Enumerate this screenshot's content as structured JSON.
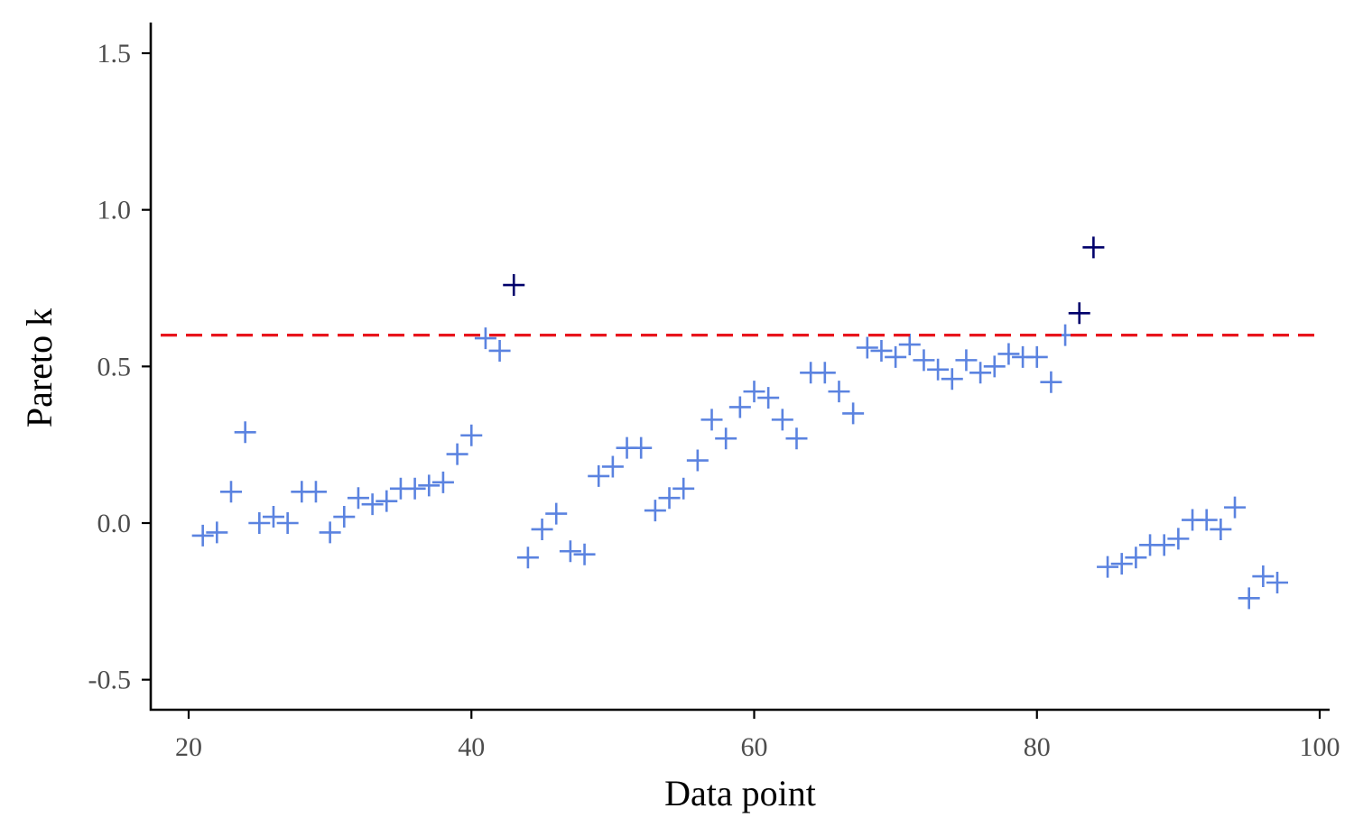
{
  "chart_data": {
    "type": "scatter",
    "title": "",
    "xlabel": "Data point",
    "ylabel": "Pareto k",
    "xlim": [
      18,
      101
    ],
    "ylim": [
      -0.6,
      1.6
    ],
    "xticks": [
      20,
      40,
      60,
      80,
      100
    ],
    "xtick_labels": [
      "20",
      "40",
      "60",
      "80",
      "100"
    ],
    "yticks": [
      -0.5,
      0.0,
      0.5,
      1.0,
      1.5
    ],
    "ytick_labels": [
      "-0.5",
      "0.0",
      "0.5",
      "1.0",
      "1.5"
    ],
    "marker": "plus",
    "grid": false,
    "colors": {
      "ok": "#5b83e0",
      "high": "#00006b",
      "threshold": "#e8141c"
    },
    "threshold": {
      "y": 0.6,
      "style": "dashed"
    },
    "points": [
      {
        "x": 21,
        "y": -0.04
      },
      {
        "x": 22,
        "y": -0.03
      },
      {
        "x": 23,
        "y": 0.1
      },
      {
        "x": 24,
        "y": 0.29
      },
      {
        "x": 25,
        "y": 0.0
      },
      {
        "x": 26,
        "y": 0.02
      },
      {
        "x": 27,
        "y": 0.0
      },
      {
        "x": 28,
        "y": 0.1
      },
      {
        "x": 29,
        "y": 0.1
      },
      {
        "x": 30,
        "y": -0.03
      },
      {
        "x": 31,
        "y": 0.02
      },
      {
        "x": 32,
        "y": 0.08
      },
      {
        "x": 33,
        "y": 0.06
      },
      {
        "x": 34,
        "y": 0.07
      },
      {
        "x": 35,
        "y": 0.11
      },
      {
        "x": 36,
        "y": 0.11
      },
      {
        "x": 37,
        "y": 0.12
      },
      {
        "x": 38,
        "y": 0.13
      },
      {
        "x": 39,
        "y": 0.22
      },
      {
        "x": 40,
        "y": 0.28
      },
      {
        "x": 41,
        "y": 0.59
      },
      {
        "x": 42,
        "y": 0.55
      },
      {
        "x": 43,
        "y": 0.76
      },
      {
        "x": 44,
        "y": -0.11
      },
      {
        "x": 45,
        "y": -0.02
      },
      {
        "x": 46,
        "y": 0.03
      },
      {
        "x": 47,
        "y": -0.09
      },
      {
        "x": 48,
        "y": -0.1
      },
      {
        "x": 49,
        "y": 0.15
      },
      {
        "x": 50,
        "y": 0.18
      },
      {
        "x": 51,
        "y": 0.24
      },
      {
        "x": 52,
        "y": 0.24
      },
      {
        "x": 53,
        "y": 0.04
      },
      {
        "x": 54,
        "y": 0.08
      },
      {
        "x": 55,
        "y": 0.11
      },
      {
        "x": 56,
        "y": 0.2
      },
      {
        "x": 57,
        "y": 0.33
      },
      {
        "x": 58,
        "y": 0.27
      },
      {
        "x": 59,
        "y": 0.37
      },
      {
        "x": 60,
        "y": 0.42
      },
      {
        "x": 61,
        "y": 0.4
      },
      {
        "x": 62,
        "y": 0.33
      },
      {
        "x": 63,
        "y": 0.27
      },
      {
        "x": 64,
        "y": 0.48
      },
      {
        "x": 65,
        "y": 0.48
      },
      {
        "x": 66,
        "y": 0.42
      },
      {
        "x": 67,
        "y": 0.35
      },
      {
        "x": 68,
        "y": 0.56
      },
      {
        "x": 69,
        "y": 0.55
      },
      {
        "x": 70,
        "y": 0.53
      },
      {
        "x": 71,
        "y": 0.57
      },
      {
        "x": 72,
        "y": 0.52
      },
      {
        "x": 73,
        "y": 0.49
      },
      {
        "x": 74,
        "y": 0.46
      },
      {
        "x": 75,
        "y": 0.52
      },
      {
        "x": 76,
        "y": 0.48
      },
      {
        "x": 77,
        "y": 0.5
      },
      {
        "x": 78,
        "y": 0.54
      },
      {
        "x": 79,
        "y": 0.53
      },
      {
        "x": 80,
        "y": 0.53
      },
      {
        "x": 81,
        "y": 0.45
      },
      {
        "x": 82,
        "y": 0.6
      },
      {
        "x": 83,
        "y": 0.67
      },
      {
        "x": 84,
        "y": 0.88
      },
      {
        "x": 85,
        "y": -0.14
      },
      {
        "x": 86,
        "y": -0.13
      },
      {
        "x": 87,
        "y": -0.11
      },
      {
        "x": 88,
        "y": -0.07
      },
      {
        "x": 89,
        "y": -0.07
      },
      {
        "x": 90,
        "y": -0.05
      },
      {
        "x": 91,
        "y": 0.01
      },
      {
        "x": 92,
        "y": 0.01
      },
      {
        "x": 93,
        "y": -0.02
      },
      {
        "x": 94,
        "y": 0.05
      },
      {
        "x": 95,
        "y": -0.24
      },
      {
        "x": 96,
        "y": -0.17
      },
      {
        "x": 97,
        "y": -0.19
      }
    ]
  }
}
